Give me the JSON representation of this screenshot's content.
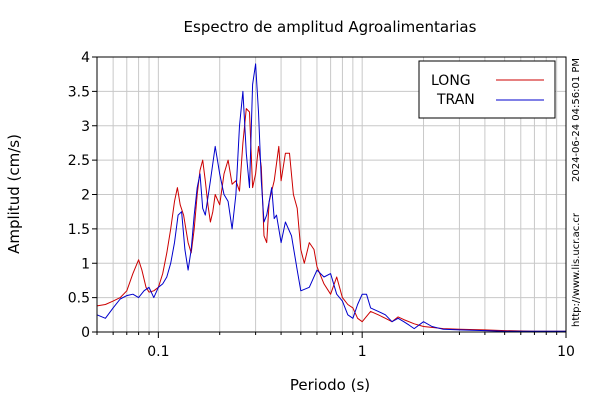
{
  "chart_data": {
    "type": "line",
    "title": "Espectro de amplitud Agroalimentarias",
    "xlabel": "Periodo (s)",
    "ylabel": "Amplitud (cm/s)",
    "x_scale": "log",
    "xlim": [
      0.05,
      10
    ],
    "ylim": [
      0,
      4
    ],
    "x_ticks": [
      {
        "value": 0.1,
        "label": "0.1"
      },
      {
        "value": 1,
        "label": "1"
      },
      {
        "value": 10,
        "label": "10"
      }
    ],
    "y_ticks": [
      {
        "value": 0,
        "label": "0"
      },
      {
        "value": 0.5,
        "label": "0.5"
      },
      {
        "value": 1,
        "label": "1"
      },
      {
        "value": 1.5,
        "label": "1.5"
      },
      {
        "value": 2,
        "label": "2"
      },
      {
        "value": 2.5,
        "label": "2.5"
      },
      {
        "value": 3,
        "label": "3"
      },
      {
        "value": 3.5,
        "label": "3.5"
      },
      {
        "value": 4,
        "label": "4"
      }
    ],
    "grid": true,
    "legend_position": "top-right",
    "timestamp": "2024-06-24 04:56:01 PM",
    "source_url": "http://www.lis.ucr.ac.cr",
    "series": [
      {
        "name": "LONG",
        "color": "#cc0000",
        "points": [
          [
            0.05,
            0.38
          ],
          [
            0.055,
            0.4
          ],
          [
            0.06,
            0.45
          ],
          [
            0.065,
            0.5
          ],
          [
            0.07,
            0.6
          ],
          [
            0.075,
            0.85
          ],
          [
            0.08,
            1.05
          ],
          [
            0.083,
            0.9
          ],
          [
            0.087,
            0.65
          ],
          [
            0.09,
            0.58
          ],
          [
            0.095,
            0.6
          ],
          [
            0.1,
            0.65
          ],
          [
            0.105,
            0.85
          ],
          [
            0.11,
            1.15
          ],
          [
            0.115,
            1.5
          ],
          [
            0.12,
            1.9
          ],
          [
            0.124,
            2.1
          ],
          [
            0.128,
            1.85
          ],
          [
            0.133,
            1.7
          ],
          [
            0.14,
            1.3
          ],
          [
            0.145,
            1.15
          ],
          [
            0.15,
            1.5
          ],
          [
            0.155,
            2.0
          ],
          [
            0.16,
            2.35
          ],
          [
            0.165,
            2.5
          ],
          [
            0.17,
            2.2
          ],
          [
            0.175,
            1.85
          ],
          [
            0.18,
            1.6
          ],
          [
            0.185,
            1.75
          ],
          [
            0.19,
            2.0
          ],
          [
            0.2,
            1.85
          ],
          [
            0.21,
            2.3
          ],
          [
            0.22,
            2.5
          ],
          [
            0.23,
            2.15
          ],
          [
            0.24,
            2.2
          ],
          [
            0.25,
            2.05
          ],
          [
            0.26,
            2.75
          ],
          [
            0.27,
            3.25
          ],
          [
            0.28,
            3.2
          ],
          [
            0.29,
            2.1
          ],
          [
            0.3,
            2.3
          ],
          [
            0.31,
            2.7
          ],
          [
            0.32,
            2.4
          ],
          [
            0.33,
            1.4
          ],
          [
            0.34,
            1.3
          ],
          [
            0.35,
            1.9
          ],
          [
            0.37,
            2.2
          ],
          [
            0.39,
            2.7
          ],
          [
            0.4,
            2.2
          ],
          [
            0.42,
            2.6
          ],
          [
            0.44,
            2.6
          ],
          [
            0.46,
            2.0
          ],
          [
            0.48,
            1.8
          ],
          [
            0.5,
            1.2
          ],
          [
            0.52,
            1.0
          ],
          [
            0.55,
            1.3
          ],
          [
            0.58,
            1.2
          ],
          [
            0.6,
            0.95
          ],
          [
            0.65,
            0.7
          ],
          [
            0.7,
            0.55
          ],
          [
            0.75,
            0.8
          ],
          [
            0.8,
            0.5
          ],
          [
            0.85,
            0.4
          ],
          [
            0.9,
            0.35
          ],
          [
            0.95,
            0.2
          ],
          [
            1.0,
            0.15
          ],
          [
            1.1,
            0.3
          ],
          [
            1.2,
            0.25
          ],
          [
            1.3,
            0.2
          ],
          [
            1.4,
            0.15
          ],
          [
            1.5,
            0.22
          ],
          [
            1.6,
            0.18
          ],
          [
            1.8,
            0.12
          ],
          [
            2.0,
            0.08
          ],
          [
            2.5,
            0.05
          ],
          [
            3.0,
            0.04
          ],
          [
            4.0,
            0.03
          ],
          [
            5.0,
            0.02
          ],
          [
            7.0,
            0.01
          ],
          [
            10.0,
            0.01
          ]
        ]
      },
      {
        "name": "TRAN",
        "color": "#0000cc",
        "points": [
          [
            0.05,
            0.25
          ],
          [
            0.055,
            0.2
          ],
          [
            0.06,
            0.35
          ],
          [
            0.065,
            0.48
          ],
          [
            0.07,
            0.53
          ],
          [
            0.075,
            0.55
          ],
          [
            0.08,
            0.5
          ],
          [
            0.085,
            0.6
          ],
          [
            0.09,
            0.65
          ],
          [
            0.095,
            0.5
          ],
          [
            0.1,
            0.65
          ],
          [
            0.105,
            0.7
          ],
          [
            0.11,
            0.8
          ],
          [
            0.115,
            1.0
          ],
          [
            0.12,
            1.3
          ],
          [
            0.125,
            1.7
          ],
          [
            0.13,
            1.75
          ],
          [
            0.135,
            1.2
          ],
          [
            0.14,
            0.9
          ],
          [
            0.145,
            1.2
          ],
          [
            0.15,
            1.7
          ],
          [
            0.155,
            2.1
          ],
          [
            0.16,
            2.3
          ],
          [
            0.165,
            1.8
          ],
          [
            0.17,
            1.7
          ],
          [
            0.18,
            2.2
          ],
          [
            0.19,
            2.7
          ],
          [
            0.2,
            2.3
          ],
          [
            0.21,
            2.0
          ],
          [
            0.22,
            1.9
          ],
          [
            0.23,
            1.5
          ],
          [
            0.24,
            2.0
          ],
          [
            0.25,
            3.0
          ],
          [
            0.26,
            3.5
          ],
          [
            0.27,
            2.6
          ],
          [
            0.28,
            2.1
          ],
          [
            0.29,
            3.6
          ],
          [
            0.3,
            3.9
          ],
          [
            0.31,
            3.2
          ],
          [
            0.32,
            2.2
          ],
          [
            0.33,
            1.6
          ],
          [
            0.34,
            1.7
          ],
          [
            0.35,
            1.9
          ],
          [
            0.36,
            2.1
          ],
          [
            0.37,
            1.65
          ],
          [
            0.38,
            1.7
          ],
          [
            0.4,
            1.3
          ],
          [
            0.42,
            1.6
          ],
          [
            0.45,
            1.4
          ],
          [
            0.48,
            0.9
          ],
          [
            0.5,
            0.6
          ],
          [
            0.55,
            0.65
          ],
          [
            0.6,
            0.9
          ],
          [
            0.65,
            0.8
          ],
          [
            0.7,
            0.85
          ],
          [
            0.75,
            0.55
          ],
          [
            0.8,
            0.45
          ],
          [
            0.85,
            0.25
          ],
          [
            0.9,
            0.2
          ],
          [
            0.95,
            0.4
          ],
          [
            1.0,
            0.55
          ],
          [
            1.05,
            0.55
          ],
          [
            1.1,
            0.35
          ],
          [
            1.2,
            0.3
          ],
          [
            1.3,
            0.25
          ],
          [
            1.4,
            0.15
          ],
          [
            1.5,
            0.2
          ],
          [
            1.6,
            0.15
          ],
          [
            1.7,
            0.1
          ],
          [
            1.8,
            0.05
          ],
          [
            2.0,
            0.15
          ],
          [
            2.2,
            0.08
          ],
          [
            2.5,
            0.04
          ],
          [
            3.0,
            0.03
          ],
          [
            4.0,
            0.02
          ],
          [
            5.0,
            0.01
          ],
          [
            7.0,
            0.01
          ],
          [
            10.0,
            0.01
          ]
        ]
      }
    ]
  }
}
